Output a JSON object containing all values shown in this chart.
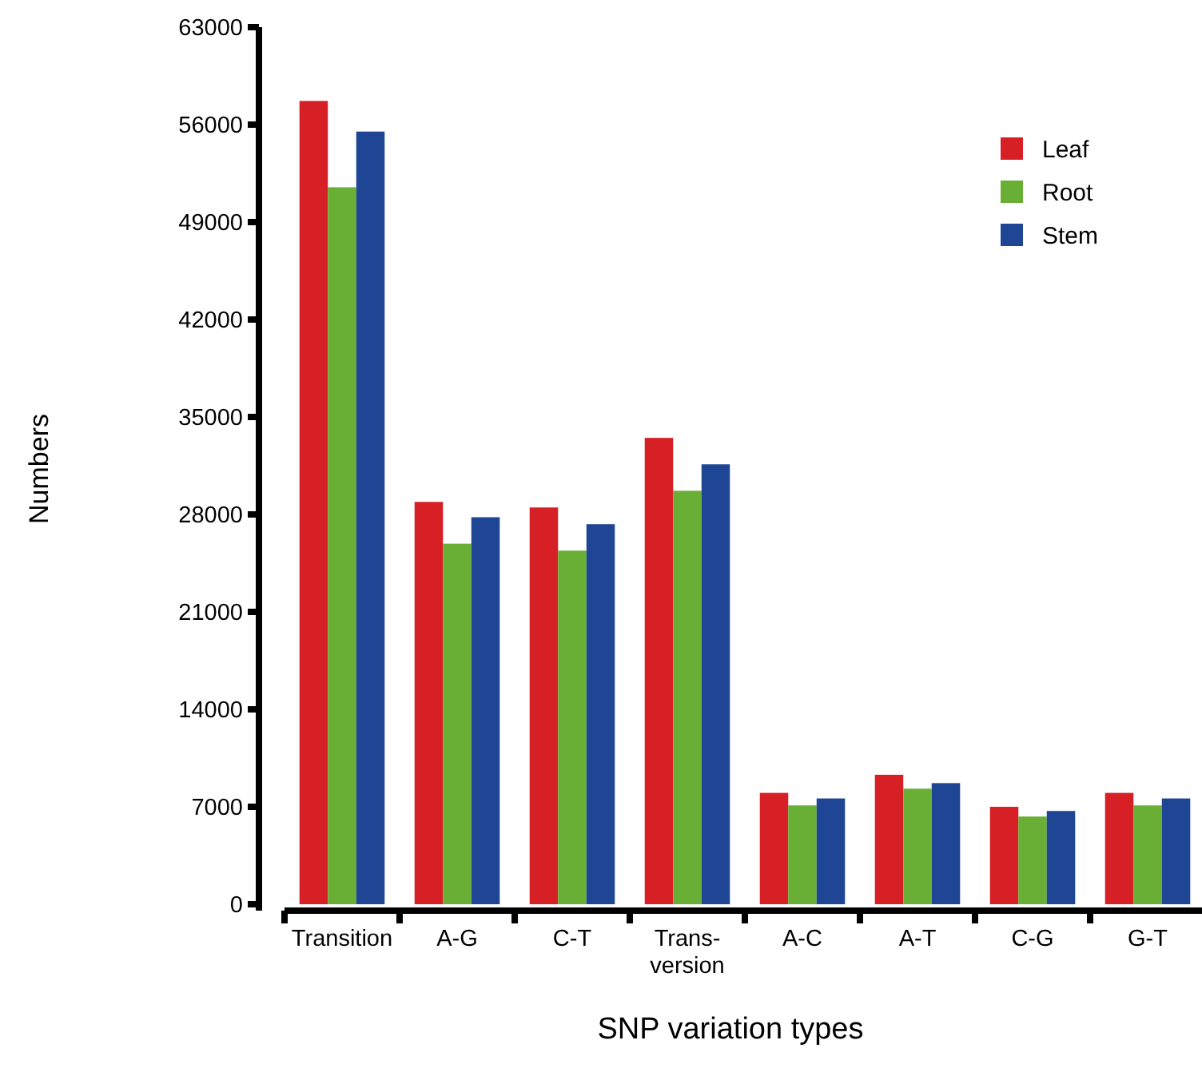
{
  "chart_data": {
    "type": "bar",
    "xlabel": "SNP variation types",
    "ylabel": "Numbers",
    "categories": [
      "Transition",
      "A-G",
      "C-T",
      "Trans-\nversion",
      "A-C",
      "A-T",
      "C-G",
      "G-T"
    ],
    "series": [
      {
        "name": "Leaf",
        "color": "#d71f26",
        "values": [
          57700,
          28900,
          28500,
          33500,
          8000,
          9300,
          7000,
          8000
        ]
      },
      {
        "name": "Root",
        "color": "#6aaf35",
        "values": [
          51500,
          25900,
          25400,
          29700,
          7100,
          8300,
          6300,
          7100
        ]
      },
      {
        "name": "Stem",
        "color": "#1f4694",
        "values": [
          55500,
          27800,
          27300,
          31600,
          7600,
          8700,
          6700,
          7600
        ]
      }
    ],
    "ylim": [
      0,
      63000
    ],
    "yticks": [
      0,
      7000,
      14000,
      21000,
      28000,
      35000,
      42000,
      49000,
      56000,
      63000
    ],
    "grid": false,
    "legend": "top right"
  }
}
